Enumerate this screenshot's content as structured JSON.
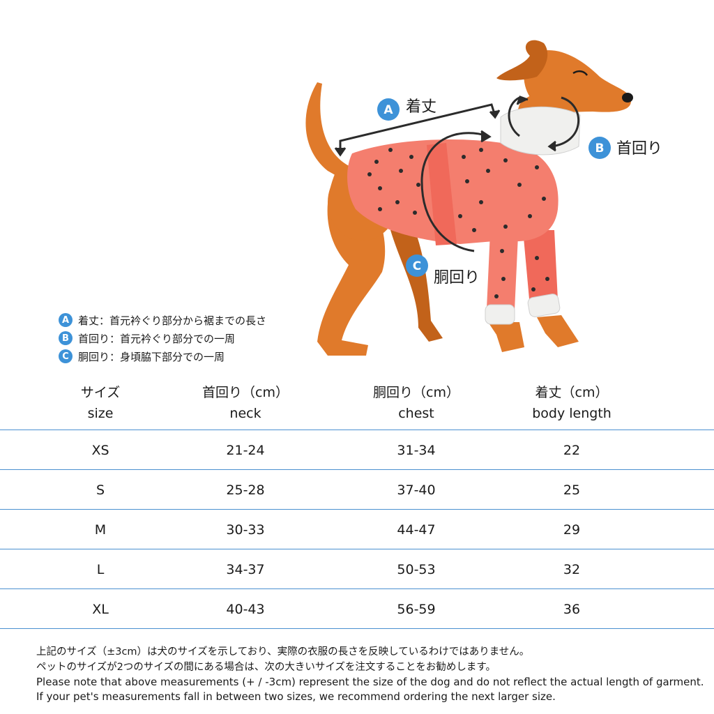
{
  "diagram": {
    "label_a": "着丈",
    "label_b": "首回り",
    "label_c": "胴回り",
    "badge_a": "A",
    "badge_b": "B",
    "badge_c": "C"
  },
  "legend": [
    {
      "badge": "A",
      "text": "着丈：首元衿ぐり部分から裾までの長さ"
    },
    {
      "badge": "B",
      "text": "首回り：首元衿ぐり部分での一周"
    },
    {
      "badge": "C",
      "text": "胴回り：身頃脇下部分での一周"
    }
  ],
  "table": {
    "headers": [
      {
        "jp": "サイズ",
        "en": "size"
      },
      {
        "jp": "首回り（cm）",
        "en": "neck"
      },
      {
        "jp": "胴回り（cm）",
        "en": "chest"
      },
      {
        "jp": "着丈（cm）",
        "en": "body length"
      }
    ],
    "rows": [
      [
        "XS",
        "21-24",
        "31-34",
        "22"
      ],
      [
        "S",
        "25-28",
        "37-40",
        "25"
      ],
      [
        "M",
        "30-33",
        "44-47",
        "29"
      ],
      [
        "L",
        "34-37",
        "50-53",
        "32"
      ],
      [
        "XL",
        "40-43",
        "56-59",
        "36"
      ]
    ]
  },
  "notes": {
    "jp1": "上記のサイズ（±3cm）は犬のサイズを示しており、実際の衣服の長さを反映しているわけではありません。",
    "jp2": "ペットのサイズが2つのサイズの間にある場合は、次の大きいサイズを注文することをお勧めします。",
    "en": "Please note that above measurements (+ / -3cm) represent the size of the dog and do not reflect the actual length of garment. If your pet's measurements fall in between two sizes, we recommend ordering the next larger size."
  },
  "colors": {
    "accent": "#3d92d8",
    "dog": "#e07a2b",
    "dog_dark": "#c2621a",
    "shirt": "#f47e6e",
    "cuff": "#f0f0ee",
    "rule": "#4a90d0"
  }
}
